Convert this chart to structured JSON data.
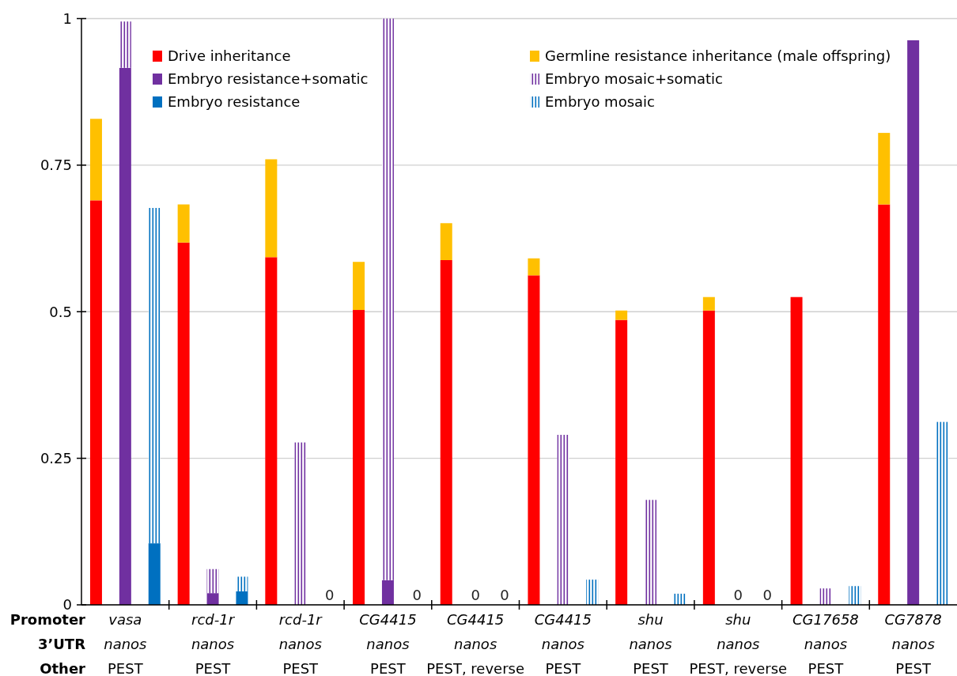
{
  "chart_data": {
    "type": "bar",
    "stacked": true,
    "categories": [
      null,
      "vasa\nnanos\nPEST",
      null,
      null,
      "rcd-1r\nnanos\nPEST",
      null,
      null,
      "rcd-1r\nnanos\nPEST",
      null,
      null,
      "CG4415\nnanos\nPEST",
      null,
      null,
      "CG4415\nnanos\nPEST, reverse",
      null,
      null,
      "CG4415\nnanos\nPEST",
      null,
      null,
      "shu\nnanos\nPEST",
      null,
      null,
      "shu\nnanos\nPEST, reverse",
      null,
      null,
      "CG17658\nnanos\nPEST",
      null,
      null,
      "CG7878\nnanos\nPEST",
      null
    ],
    "annotations": [
      "Promoter",
      "3’UTR",
      "Other"
    ],
    "series": [
      {
        "name": "Drive inheritance",
        "color": "#ff0000",
        "values": [
          0.69,
          null,
          null,
          0.618,
          null,
          null,
          0.593,
          null,
          null,
          0.503,
          null,
          null,
          0.588,
          null,
          null,
          0.562,
          null,
          null,
          0.486,
          null,
          null,
          0.502,
          null,
          null,
          0.525,
          null,
          null,
          0.683,
          null,
          null
        ]
      },
      {
        "name": "Germline resistance inheritance (male offspring)",
        "color": "#ffc000",
        "values": [
          0.139,
          null,
          null,
          0.065,
          null,
          null,
          0.167,
          null,
          null,
          0.082,
          null,
          null,
          0.063,
          null,
          null,
          0.029,
          null,
          null,
          0.016,
          null,
          null,
          0.023,
          null,
          null,
          0,
          null,
          null,
          0.122,
          null,
          null
        ]
      },
      {
        "name": "Embryo resistance+somatic",
        "color": "#7030a0",
        "values": [
          null,
          0.916,
          null,
          null,
          0.02,
          null,
          null,
          0,
          null,
          null,
          0.042,
          null,
          null,
          0,
          null,
          null,
          0,
          null,
          null,
          0,
          null,
          null,
          0,
          null,
          null,
          0,
          null,
          null,
          0.963,
          null
        ],
        "value_labels": [
          null,
          null,
          null,
          null,
          null,
          null,
          null,
          null,
          null,
          null,
          null,
          null,
          null,
          "0",
          null,
          null,
          null,
          null,
          null,
          null,
          null,
          null,
          "0",
          null,
          null,
          null,
          null,
          null,
          null,
          null
        ]
      },
      {
        "name": "Embryo mosaic+somatic",
        "color": "#7030a0",
        "values": [
          null,
          0.079,
          null,
          null,
          0.041,
          null,
          null,
          0.277,
          null,
          null,
          0.958,
          null,
          null,
          0,
          null,
          null,
          0.29,
          null,
          null,
          0.179,
          null,
          null,
          0,
          null,
          null,
          0.028,
          null,
          null,
          0,
          null
        ]
      },
      {
        "name": "Embryo resistance",
        "color": "#0070c0",
        "values": [
          null,
          null,
          0.105,
          null,
          null,
          0.023,
          null,
          null,
          0,
          null,
          null,
          0,
          null,
          null,
          0,
          null,
          null,
          0,
          null,
          null,
          0,
          null,
          null,
          0,
          null,
          null,
          0,
          null,
          null,
          0
        ],
        "value_labels": [
          null,
          null,
          null,
          null,
          null,
          null,
          null,
          null,
          "0",
          null,
          null,
          "0",
          null,
          null,
          "0",
          null,
          null,
          null,
          null,
          null,
          null,
          null,
          null,
          "0",
          null,
          null,
          null,
          null,
          null,
          null
        ]
      },
      {
        "name": "Embryo mosaic",
        "color": "#0070c0",
        "values": [
          null,
          null,
          0.572,
          null,
          null,
          0.025,
          null,
          null,
          0,
          null,
          null,
          0,
          null,
          null,
          0,
          null,
          null,
          0.043,
          null,
          null,
          0.019,
          null,
          null,
          0,
          null,
          null,
          0.032,
          null,
          null,
          0.312
        ]
      }
    ],
    "ylim": [
      0,
      1
    ],
    "yticks": [
      0,
      0.25,
      0.5,
      0.75,
      1
    ],
    "grid": "y",
    "legend": "top"
  }
}
